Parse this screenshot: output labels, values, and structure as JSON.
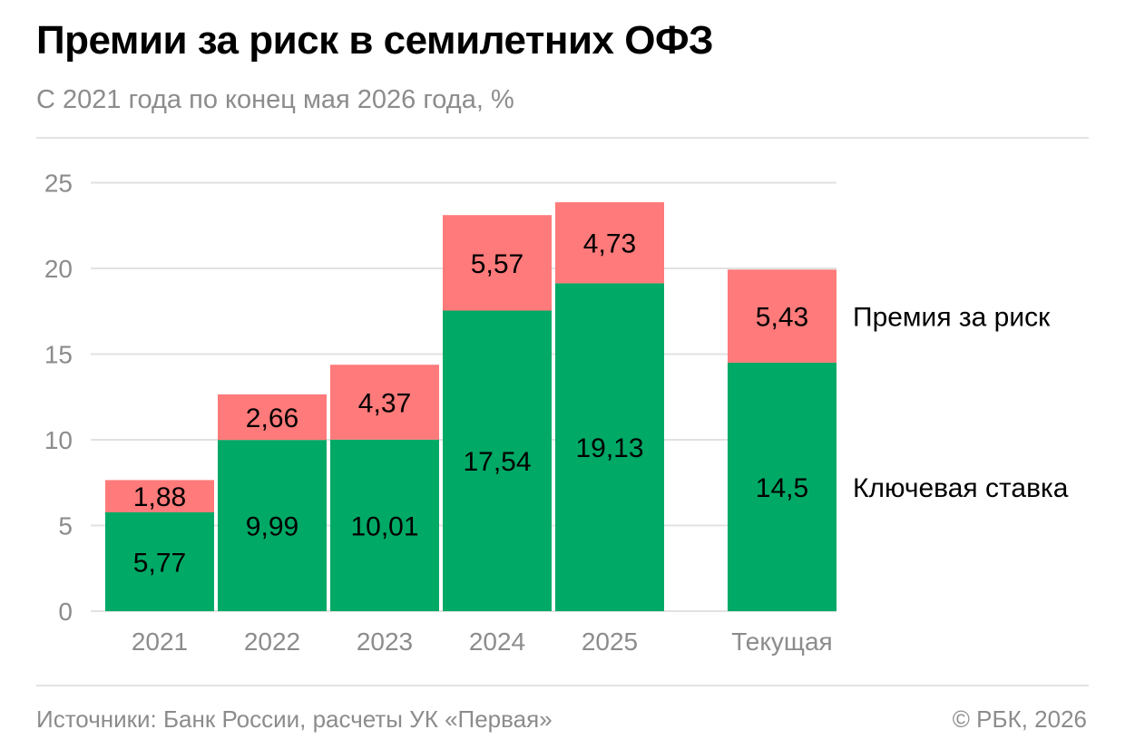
{
  "title": "Премии за риск в семилетних ОФЗ",
  "subtitle": "С 2021 года по конец мая 2026 года, %",
  "footer": {
    "source": "Источники: Банк России, расчеты УК «Первая»",
    "copyright": "© РБК, 2026"
  },
  "colors": {
    "key_rate": "#00a966",
    "risk_premium": "#ff7a7a",
    "grid": "#e2e2e2",
    "axis_text": "#8c8c8c"
  },
  "chart_data": {
    "type": "bar",
    "stacked": true,
    "categories": [
      "2021",
      "2022",
      "2023",
      "2024",
      "2025",
      "Текущая"
    ],
    "series": [
      {
        "name": "Ключевая ставка",
        "values": [
          5.77,
          9.99,
          10.01,
          17.54,
          19.13,
          14.5
        ],
        "labels": [
          "5,77",
          "9,99",
          "10,01",
          "17,54",
          "19,13",
          "14,5"
        ]
      },
      {
        "name": "Премия за риск",
        "values": [
          1.88,
          2.66,
          4.37,
          5.57,
          4.73,
          5.43
        ],
        "labels": [
          "1,88",
          "2,66",
          "4,37",
          "5,57",
          "4,73",
          "5,43"
        ]
      }
    ],
    "yticks": [
      "0",
      "5",
      "10",
      "15",
      "20",
      "25"
    ],
    "ylim": [
      0,
      25
    ],
    "grid": true,
    "legend": "right, labels beside last bar"
  }
}
